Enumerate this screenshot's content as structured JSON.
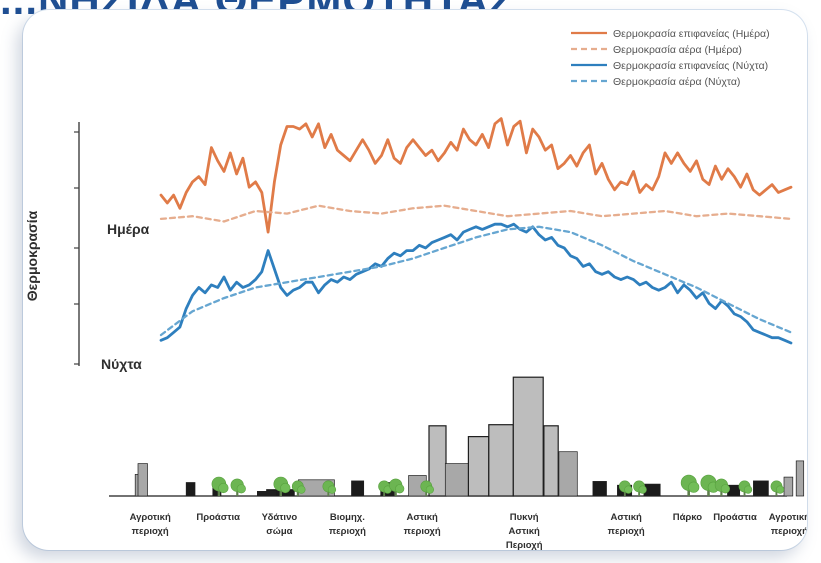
{
  "title_fragment": "...ΝΗΣΙΔΑ ΘΕΡΜΟΤΗΤΑΣ",
  "chart_data": {
    "type": "line",
    "title": "",
    "ylabel": "Θερμοκρασία",
    "y_axis_labels": {
      "day": "Ημέρα",
      "night": "Νύχτα"
    },
    "ylim": [
      0,
      10
    ],
    "xlim": [
      0,
      100
    ],
    "series": [
      {
        "name": "Θερμοκρασία επιφανείας (Ημέρα)",
        "color": "#e07b48",
        "dash": "solid",
        "x": [
          0,
          1,
          2,
          3,
          4,
          5,
          6,
          7,
          8,
          9,
          10,
          11,
          12,
          13,
          14,
          15,
          16,
          17,
          18,
          19,
          20,
          21,
          22,
          23,
          24,
          25,
          26,
          27,
          28,
          29,
          30,
          31,
          32,
          33,
          34,
          35,
          36,
          37,
          38,
          39,
          40,
          41,
          42,
          43,
          44,
          45,
          46,
          47,
          48,
          49,
          50,
          51,
          52,
          53,
          54,
          55,
          56,
          57,
          58,
          59,
          60,
          61,
          62,
          63,
          64,
          65,
          66,
          67,
          68,
          69,
          70,
          71,
          72,
          73,
          74,
          75,
          76,
          77,
          78,
          79,
          80,
          81,
          82,
          83,
          84,
          85,
          86,
          87,
          88,
          89,
          90,
          91,
          92,
          93,
          94,
          95,
          96,
          97,
          98,
          99,
          100
        ],
        "values": [
          6.7,
          6.4,
          6.7,
          6.2,
          6.8,
          7.2,
          7.4,
          7.1,
          8.5,
          8.0,
          7.6,
          8.3,
          7.5,
          8.1,
          7.0,
          7.2,
          6.8,
          5.3,
          7.2,
          8.6,
          9.3,
          9.3,
          9.2,
          9.4,
          8.9,
          9.4,
          8.5,
          9.0,
          8.4,
          8.2,
          8.0,
          8.4,
          8.8,
          8.4,
          7.9,
          8.2,
          8.8,
          8.1,
          7.9,
          8.5,
          8.8,
          8.5,
          8.2,
          8.4,
          8.0,
          8.3,
          8.7,
          8.4,
          9.2,
          8.8,
          8.6,
          9.0,
          8.5,
          9.4,
          9.6,
          8.6,
          9.3,
          9.5,
          8.3,
          9.2,
          8.9,
          8.4,
          8.6,
          7.7,
          7.9,
          8.2,
          7.8,
          8.3,
          8.6,
          7.5,
          7.9,
          7.3,
          6.9,
          7.2,
          7.1,
          7.6,
          6.8,
          7.1,
          6.9,
          7.4,
          8.3,
          7.9,
          8.3,
          7.9,
          7.6,
          8.0,
          7.3,
          7.1,
          7.8,
          7.3,
          7.7,
          7.4,
          7.0,
          7.5,
          6.9,
          6.7,
          6.9,
          7.1,
          6.8,
          6.9,
          7.0
        ]
      },
      {
        "name": "Θερμοκρασία αέρα (Ημέρα)",
        "color": "#e6ad8e",
        "dash": "dashed",
        "x": [
          0,
          5,
          10,
          15,
          20,
          25,
          30,
          35,
          40,
          45,
          50,
          55,
          60,
          65,
          70,
          75,
          80,
          85,
          90,
          95,
          100
        ],
        "values": [
          5.8,
          5.9,
          5.7,
          6.1,
          6.0,
          6.3,
          6.1,
          6.0,
          6.2,
          6.3,
          6.1,
          5.9,
          6.0,
          6.1,
          5.9,
          6.0,
          6.1,
          5.9,
          6.0,
          5.9,
          5.8
        ]
      },
      {
        "name": "Θερμοκρασία επιφανείας (Νύχτα)",
        "color": "#2e7fbe",
        "dash": "solid",
        "x": [
          0,
          1,
          2,
          3,
          4,
          5,
          6,
          7,
          8,
          9,
          10,
          11,
          12,
          13,
          14,
          15,
          16,
          17,
          18,
          19,
          20,
          21,
          22,
          23,
          24,
          25,
          26,
          27,
          28,
          29,
          30,
          31,
          32,
          33,
          34,
          35,
          36,
          37,
          38,
          39,
          40,
          41,
          42,
          43,
          44,
          45,
          46,
          47,
          48,
          49,
          50,
          51,
          52,
          53,
          54,
          55,
          56,
          57,
          58,
          59,
          60,
          61,
          62,
          63,
          64,
          65,
          66,
          67,
          68,
          69,
          70,
          71,
          72,
          73,
          74,
          75,
          76,
          77,
          78,
          79,
          80,
          81,
          82,
          83,
          84,
          85,
          86,
          87,
          88,
          89,
          90,
          91,
          92,
          93,
          94,
          95,
          96,
          97,
          98,
          99,
          100
        ],
        "values": [
          1.2,
          1.3,
          1.5,
          1.7,
          2.4,
          2.9,
          3.2,
          3.0,
          3.3,
          3.2,
          3.6,
          3.1,
          3.4,
          3.2,
          3.3,
          3.5,
          3.8,
          4.6,
          3.9,
          3.2,
          2.9,
          3.1,
          3.2,
          3.4,
          3.4,
          3.0,
          3.3,
          3.5,
          3.4,
          3.6,
          3.5,
          3.7,
          3.8,
          3.9,
          4.1,
          4.0,
          4.3,
          4.5,
          4.4,
          4.6,
          4.6,
          4.8,
          4.7,
          4.9,
          5.0,
          5.1,
          5.2,
          5.0,
          5.3,
          5.4,
          5.5,
          5.4,
          5.5,
          5.6,
          5.6,
          5.5,
          5.6,
          5.4,
          5.3,
          5.5,
          5.2,
          5.0,
          5.1,
          4.8,
          4.7,
          4.4,
          4.3,
          4.0,
          4.1,
          3.8,
          3.7,
          3.8,
          3.6,
          3.5,
          3.6,
          3.5,
          3.3,
          3.4,
          3.2,
          3.1,
          3.2,
          3.4,
          3.0,
          3.3,
          3.1,
          2.8,
          3.0,
          2.6,
          2.4,
          2.7,
          2.5,
          2.2,
          2.1,
          1.9,
          1.6,
          1.5,
          1.4,
          1.3,
          1.3,
          1.2,
          1.1
        ]
      },
      {
        "name": "Θερμοκρασία αέρα (Νύχτα)",
        "color": "#66a6d1",
        "dash": "dashed",
        "x": [
          0,
          5,
          10,
          15,
          20,
          25,
          30,
          35,
          40,
          45,
          50,
          55,
          60,
          65,
          70,
          75,
          80,
          85,
          90,
          95,
          100
        ],
        "values": [
          1.4,
          2.3,
          2.8,
          3.2,
          3.4,
          3.6,
          3.8,
          4.0,
          4.3,
          4.7,
          5.1,
          5.4,
          5.5,
          5.3,
          4.8,
          4.2,
          3.7,
          3.2,
          2.6,
          2.0,
          1.5
        ]
      }
    ],
    "legend": {
      "placement": "top-right",
      "entries": [
        "Θερμοκρασία επιφανείας (Ημέρα)",
        "Θερμοκρασία αέρα (Ημέρα)",
        "Θερμοκρασία επιφανείας (Νύχτα)",
        "Θερμοκρασία αέρα (Νύχτα)"
      ]
    },
    "zones": [
      {
        "label": [
          "Αγροτική",
          "περιοχή"
        ],
        "x_center": 4
      },
      {
        "label": [
          "Προάστια"
        ],
        "x_center": 14
      },
      {
        "label": [
          "Υδάτινο",
          "σώμα"
        ],
        "x_center": 23
      },
      {
        "label": [
          "Βιομηχ.",
          "περιοχή"
        ],
        "x_center": 33
      },
      {
        "label": [
          "Αστική",
          "περιοχή"
        ],
        "x_center": 44
      },
      {
        "label": [
          "Πυκνή",
          "Αστική",
          "Περιοχή"
        ],
        "x_center": 59
      },
      {
        "label": [
          "Αστική",
          "περιοχή"
        ],
        "x_center": 74
      },
      {
        "label": [
          "Πάρκο"
        ],
        "x_center": 83
      },
      {
        "label": [
          "Προάστια"
        ],
        "x_center": 90
      },
      {
        "label": [
          "Αγροτική",
          "περιοχή"
        ],
        "x_center": 98
      }
    ],
    "building_heights": [
      {
        "x": 1.8,
        "w": 1.6,
        "h": 0.4
      },
      {
        "x": 2.2,
        "w": 1.4,
        "h": 0.6
      },
      {
        "x": 9.3,
        "w": 1.3,
        "h": 0.25
      },
      {
        "x": 13.2,
        "w": 1.2,
        "h": 0.2
      },
      {
        "x": 21.1,
        "w": 4.1,
        "h": 0.12
      },
      {
        "x": 25.8,
        "w": 5.3,
        "h": 0.3
      },
      {
        "x": 33.6,
        "w": 1.8,
        "h": 0.28
      },
      {
        "x": 37.9,
        "w": 2.0,
        "h": 0.25
      },
      {
        "x": 42.0,
        "w": 2.6,
        "h": 0.38
      },
      {
        "x": 45.0,
        "w": 2.5,
        "h": 1.3
      },
      {
        "x": 47.4,
        "w": 3.5,
        "h": 0.6
      },
      {
        "x": 50.8,
        "w": 3.0,
        "h": 1.1
      },
      {
        "x": 53.8,
        "w": 3.6,
        "h": 1.32
      },
      {
        "x": 57.4,
        "w": 4.4,
        "h": 2.2
      },
      {
        "x": 61.9,
        "w": 2.1,
        "h": 1.3
      },
      {
        "x": 64.1,
        "w": 2.7,
        "h": 0.82
      },
      {
        "x": 69.1,
        "w": 2.0,
        "h": 0.27
      },
      {
        "x": 72.7,
        "w": 2.1,
        "h": 0.2
      },
      {
        "x": 76.6,
        "w": 2.4,
        "h": 0.22
      },
      {
        "x": 88.9,
        "w": 1.8,
        "h": 0.2
      },
      {
        "x": 92.7,
        "w": 2.2,
        "h": 0.28
      },
      {
        "x": 97.2,
        "w": 1.3,
        "h": 0.35
      },
      {
        "x": 99.0,
        "w": 1.1,
        "h": 0.65
      }
    ],
    "trees": [
      {
        "x": 14.1,
        "size": 1.0
      },
      {
        "x": 16.8,
        "size": 0.9
      },
      {
        "x": 23.2,
        "size": 1.0
      },
      {
        "x": 25.7,
        "size": 0.8
      },
      {
        "x": 30.2,
        "size": 0.8
      },
      {
        "x": 38.4,
        "size": 0.8
      },
      {
        "x": 40.1,
        "size": 0.9
      },
      {
        "x": 44.6,
        "size": 0.8
      },
      {
        "x": 73.8,
        "size": 0.8
      },
      {
        "x": 75.9,
        "size": 0.8
      },
      {
        "x": 83.2,
        "size": 1.1
      },
      {
        "x": 86.1,
        "size": 1.1
      },
      {
        "x": 88.0,
        "size": 0.9
      },
      {
        "x": 91.4,
        "size": 0.8
      },
      {
        "x": 96.1,
        "size": 0.8
      }
    ]
  }
}
